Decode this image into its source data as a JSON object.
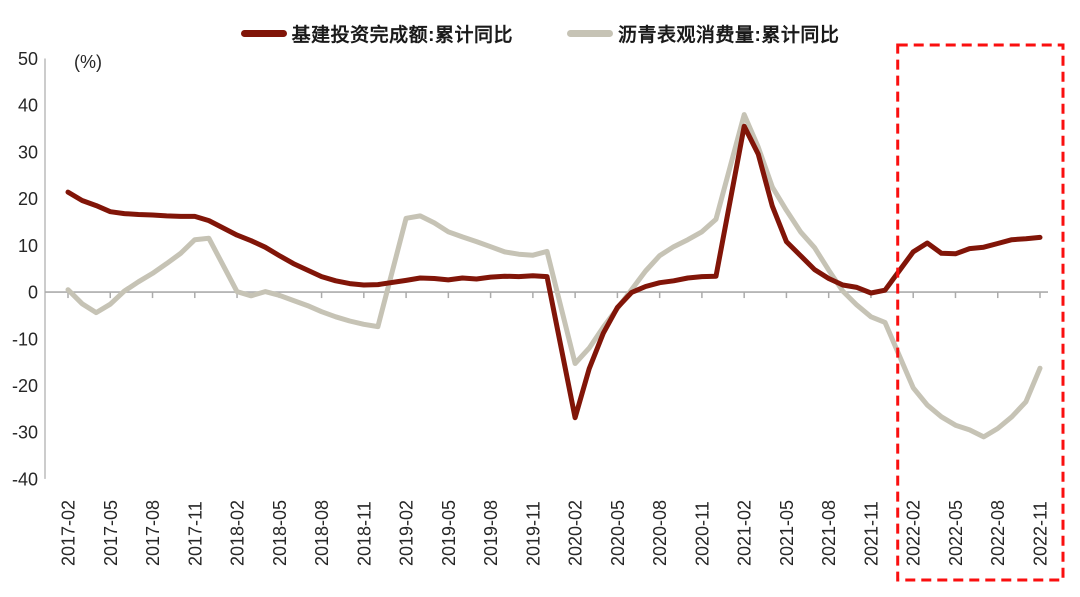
{
  "chart_data": {
    "type": "line",
    "title": "",
    "unit_label": "(%)",
    "legend_position": "top",
    "grid": false,
    "ylim": [
      -40,
      50
    ],
    "y_ticks": [
      50,
      40,
      30,
      20,
      10,
      0,
      -10,
      -20,
      -30,
      -40
    ],
    "x_tick_months": [
      "02",
      "05",
      "08",
      "11"
    ],
    "x_tick_labels": [
      "2017-02",
      "2017-05",
      "2017-08",
      "2017-11",
      "2018-02",
      "2018-05",
      "2018-08",
      "2018-11",
      "2019-02",
      "2019-05",
      "2019-08",
      "2019-11",
      "2020-02",
      "2020-05",
      "2020-08",
      "2020-11",
      "2021-02",
      "2021-05",
      "2021-08",
      "2021-11",
      "2022-02",
      "2022-05",
      "2022-08",
      "2022-11"
    ],
    "categories": [
      "2017-02",
      "2017-03",
      "2017-04",
      "2017-05",
      "2017-06",
      "2017-07",
      "2017-08",
      "2017-09",
      "2017-10",
      "2017-11",
      "2017-12",
      "2018-02",
      "2018-03",
      "2018-04",
      "2018-05",
      "2018-06",
      "2018-07",
      "2018-08",
      "2018-09",
      "2018-10",
      "2018-11",
      "2018-12",
      "2019-02",
      "2019-03",
      "2019-04",
      "2019-05",
      "2019-06",
      "2019-07",
      "2019-08",
      "2019-09",
      "2019-10",
      "2019-11",
      "2019-12",
      "2020-02",
      "2020-03",
      "2020-04",
      "2020-05",
      "2020-06",
      "2020-07",
      "2020-08",
      "2020-09",
      "2020-10",
      "2020-11",
      "2020-12",
      "2021-02",
      "2021-03",
      "2021-04",
      "2021-05",
      "2021-06",
      "2021-07",
      "2021-08",
      "2021-09",
      "2021-10",
      "2021-11",
      "2021-12",
      "2022-02",
      "2022-03",
      "2022-04",
      "2022-05",
      "2022-06",
      "2022-07",
      "2022-08",
      "2022-09",
      "2022-10",
      "2022-11"
    ],
    "series": [
      {
        "name": "基建投资完成额:累计同比",
        "color": "#811508",
        "values": [
          21.4,
          19.6,
          18.5,
          17.2,
          16.8,
          16.6,
          16.5,
          16.3,
          16.2,
          16.2,
          15.3,
          12.2,
          11.0,
          9.6,
          7.8,
          6.1,
          4.7,
          3.3,
          2.4,
          1.8,
          1.5,
          1.6,
          2.5,
          3.0,
          2.9,
          2.6,
          3.0,
          2.8,
          3.2,
          3.4,
          3.3,
          3.5,
          3.3,
          -26.9,
          -16.4,
          -8.8,
          -3.3,
          -0.1,
          1.2,
          2.0,
          2.4,
          3.0,
          3.3,
          3.4,
          35.5,
          29.5,
          18.4,
          10.8,
          7.8,
          4.8,
          2.9,
          1.5,
          1.0,
          -0.2,
          0.4,
          8.6,
          10.5,
          8.3,
          8.2,
          9.3,
          9.6,
          10.4,
          11.2,
          11.4,
          11.7
        ]
      },
      {
        "name": "沥青表观消费量:累计同比",
        "color": "#C6C3B5",
        "values": [
          0.5,
          -2.5,
          -4.4,
          -2.6,
          0.2,
          2.2,
          4.0,
          6.1,
          8.3,
          11.2,
          11.5,
          0.1,
          -0.8,
          0.1,
          -0.7,
          -1.8,
          -2.9,
          -4.2,
          -5.3,
          -6.2,
          -6.9,
          -7.4,
          15.8,
          16.3,
          14.8,
          12.9,
          11.8,
          10.8,
          9.7,
          8.6,
          8.1,
          7.9,
          8.7,
          -15.3,
          -12.0,
          -7.5,
          -3.5,
          0.5,
          4.5,
          7.8,
          9.7,
          11.2,
          12.9,
          15.6,
          38.0,
          31.0,
          22.5,
          17.5,
          12.9,
          9.5,
          4.7,
          0.2,
          -2.8,
          -5.3,
          -6.5,
          -20.5,
          -24.2,
          -26.7,
          -28.5,
          -29.5,
          -31.0,
          -29.2,
          -26.7,
          -23.5,
          -16.3
        ]
      }
    ],
    "highlight_region": {
      "start": "2022-02",
      "end": "2022-11",
      "color": "#FA0F0F",
      "style": "dashed"
    }
  }
}
